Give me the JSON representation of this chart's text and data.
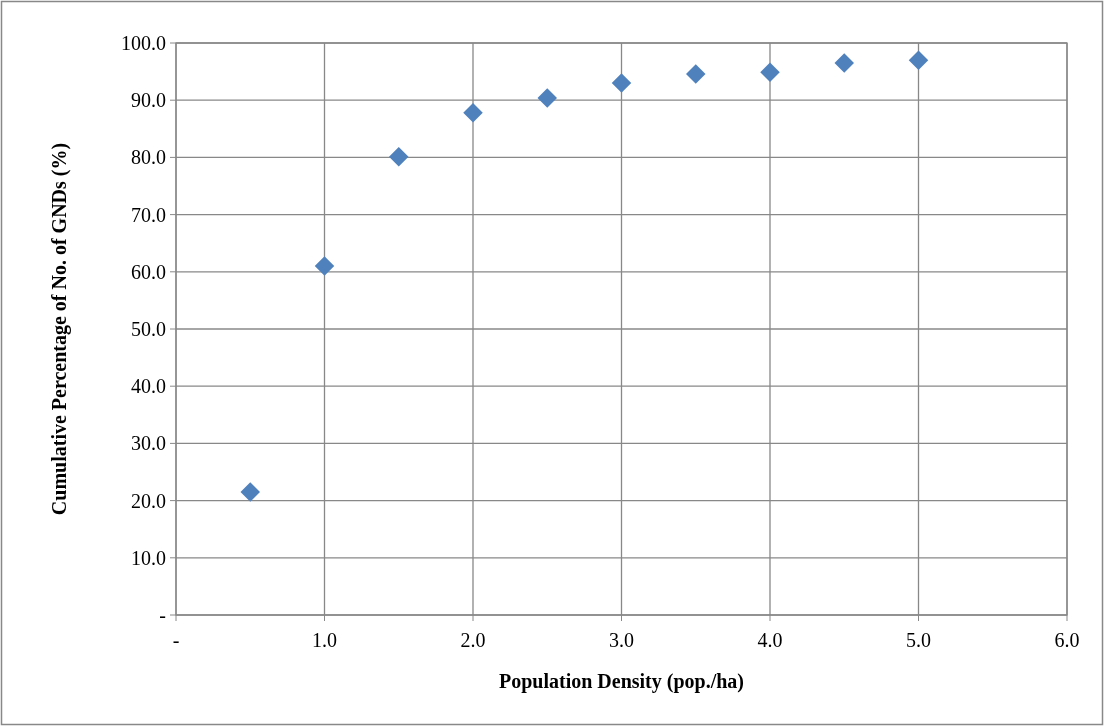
{
  "chart_data": {
    "type": "scatter",
    "xlabel": "Population Density (pop./ha)",
    "ylabel": "Cumulative Percentage of No. of GNDs (%)",
    "x": [
      0.5,
      1.0,
      1.5,
      2.0,
      2.5,
      3.0,
      3.5,
      4.0,
      4.5,
      5.0
    ],
    "series": [
      {
        "color": "#4f81bd",
        "values": [
          21.5,
          61.0,
          80.1,
          87.8,
          90.4,
          93.0,
          94.6,
          94.9,
          96.5,
          97.0
        ]
      }
    ],
    "xlim": [
      0,
      6
    ],
    "xticks": [
      {
        "value": 0,
        "label": "-"
      },
      {
        "value": 1,
        "label": "1.0"
      },
      {
        "value": 2,
        "label": "2.0"
      },
      {
        "value": 3,
        "label": "3.0"
      },
      {
        "value": 4,
        "label": "4.0"
      },
      {
        "value": 5,
        "label": "5.0"
      },
      {
        "value": 6,
        "label": "6.0"
      }
    ],
    "ylim": [
      0,
      100
    ],
    "yticks": [
      {
        "value": 0,
        "label": "-"
      },
      {
        "value": 10,
        "label": "10.0"
      },
      {
        "value": 20,
        "label": "20.0"
      },
      {
        "value": 30,
        "label": "30.0"
      },
      {
        "value": 40,
        "label": "40.0"
      },
      {
        "value": 50,
        "label": "50.0"
      },
      {
        "value": 60,
        "label": "60.0"
      },
      {
        "value": 70,
        "label": "70.0"
      },
      {
        "value": 80,
        "label": "80.0"
      },
      {
        "value": 90,
        "label": "90.0"
      },
      {
        "value": 100,
        "label": "100.0"
      }
    ],
    "grid": true,
    "marker": "diamond"
  }
}
